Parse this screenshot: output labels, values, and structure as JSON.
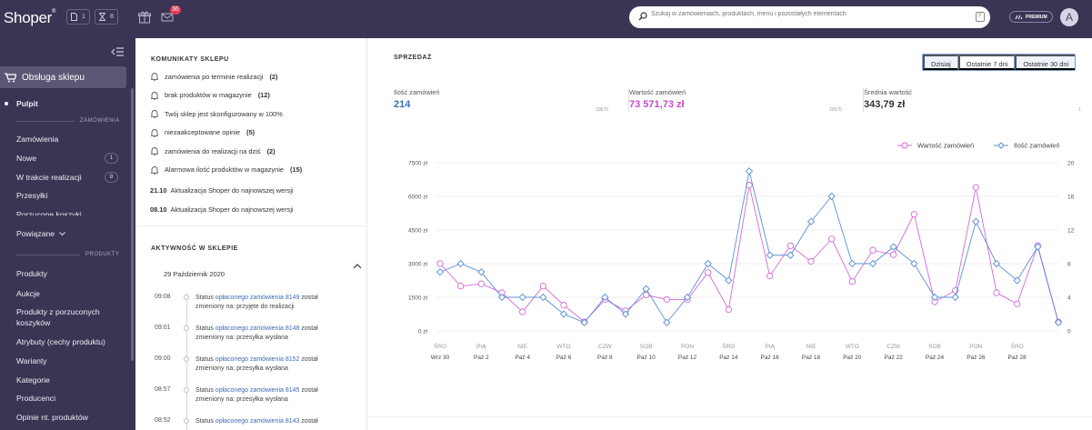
{
  "topbar": {
    "logo": "Shoper",
    "badge1_icon": "document-icon",
    "badge1_count": "1",
    "badge2_icon": "hourglass-icon",
    "badge2_count": "8",
    "mail_count": "36",
    "search_placeholder": "Szukaj w zamówieniach, produktach, menu i pozostałych elementach",
    "search_key": "F",
    "premium_label": "PREMIUM",
    "avatar_letter": "A"
  },
  "sidebar": {
    "store_label": "Obsługa sklepu",
    "pulpit": "Pulpit",
    "section_orders": "ZAMÓWIENIA",
    "orders": "Zamówienia",
    "new": "Nowe",
    "new_count": "1",
    "in_progress": "W trakcie realizacji",
    "in_progress_count": "8",
    "shipments": "Przesyłki",
    "abandoned_carts": "Porzucone koszyki",
    "related": "Powiązane",
    "section_products": "PRODUKTY",
    "products": "Produkty",
    "auctions": "Aukcje",
    "products_abandoned_1": "Produkty z porzuconych",
    "products_abandoned_2": "koszyków",
    "attributes": "Atrybuty (cechy produktu)",
    "variants": "Warianty",
    "categories": "Kategorie",
    "producers": "Producenci",
    "reviews": "Opinie nt. produktów"
  },
  "messages": {
    "title": "KOMUNIKATY SKLEPU",
    "items": [
      {
        "text": "zamówienia po terminie realizacji",
        "count": "(2)"
      },
      {
        "text": "brak produktów w magazynie",
        "count": "(12)"
      },
      {
        "text": "Twój sklep jest skonfigurowany w 100%",
        "count": ""
      },
      {
        "text": "niezaakceptowane opinie",
        "count": "(5)"
      },
      {
        "text": "zamówienia do realizacji na dziś",
        "count": "(2)"
      },
      {
        "text": "Alarmowa ilość produktów w magazynie",
        "count": "(15)"
      }
    ],
    "updates": [
      {
        "date": "21.10",
        "text": "Aktualizacja Shoper do najnowszej wersji"
      },
      {
        "date": "08.10",
        "text": "Aktualizacja Shoper do najnowszej wersji"
      }
    ]
  },
  "activity": {
    "title": "AKTYWNOŚĆ W SKLEPIE",
    "date": "29 Październik 2020",
    "items": [
      {
        "time": "09:08",
        "pre": "Status ",
        "link": "opłaconego zamówienia 8149",
        "post": " został zmieniony na: przyjęte do realizacji"
      },
      {
        "time": "09:01",
        "pre": "Status ",
        "link": "opłaconego zamówienia 8148",
        "post": " został zmieniony na: przesyłka wysłana"
      },
      {
        "time": "09:00",
        "pre": "Status ",
        "link": "opłaconego zamówienia 8152",
        "post": " został zmieniony na: przesyłka wysłana"
      },
      {
        "time": "08:57",
        "pre": "Status ",
        "link": "opłaconego zamówienia 8145",
        "post": " został zmieniony na: przesyłka wysłana"
      },
      {
        "time": "08:52",
        "pre": "Status ",
        "link": "opłaconego zamówienia 8143",
        "post": " został"
      }
    ]
  },
  "sales": {
    "title": "SPRZEDAŻ",
    "ranges": [
      "Dzisiaj",
      "Ostatnie 7 dni",
      "Ostatnie 30 dni"
    ],
    "metrics": [
      {
        "label": "Ilość zamówień",
        "value": "214",
        "prev": "10670",
        "color": "#3d6bb5"
      },
      {
        "label": "Wartość zamówień",
        "value": "73 571,73 zł",
        "prev": "20970",
        "color": "#c54bc9"
      },
      {
        "label": "Średnia wartość",
        "value": "343,79 zł",
        "prev": "1",
        "color": "#333333"
      }
    ]
  },
  "chart_data": {
    "type": "line",
    "legend": [
      "Wartość zamówień",
      "Ilość zamówień"
    ],
    "legend_position": "top-right",
    "colors": {
      "value": "#d26ad6",
      "count": "#5b8fd6"
    },
    "y_left": {
      "ticks": [
        "0 zł",
        "1500 zł",
        "3000 zł",
        "4500 zł",
        "6000 zł",
        "7500 zł"
      ],
      "range": [
        0,
        7500
      ]
    },
    "y_right": {
      "ticks": [
        "0",
        "4",
        "8",
        "12",
        "16",
        "20"
      ],
      "range": [
        0,
        20
      ]
    },
    "x_labels": [
      [
        "ŚRO",
        "Wrz 30"
      ],
      [
        "PIĄ",
        "Paź 2"
      ],
      [
        "NIE",
        "Paź 4"
      ],
      [
        "WTO",
        "Paź 6"
      ],
      [
        "CZW",
        "Paź 8"
      ],
      [
        "SOB",
        "Paź 10"
      ],
      [
        "PON",
        "Paź 12"
      ],
      [
        "ŚRO",
        "Paź 14"
      ],
      [
        "PIĄ",
        "Paź 16"
      ],
      [
        "NIE",
        "Paź 18"
      ],
      [
        "WTO",
        "Paź 20"
      ],
      [
        "CZW",
        "Paź 22"
      ],
      [
        "SOB",
        "Paź 24"
      ],
      [
        "PON",
        "Paź 26"
      ],
      [
        "ŚRO",
        "Paź 28"
      ]
    ],
    "series": [
      {
        "name": "Wartość zamówień",
        "axis": "left",
        "values": [
          3000,
          2000,
          2100,
          1700,
          850,
          2000,
          1150,
          400,
          1400,
          900,
          1600,
          1400,
          1400,
          2600,
          950,
          6500,
          2450,
          3800,
          3100,
          4100,
          2200,
          3600,
          3400,
          5200,
          1300,
          1800,
          6400,
          1700,
          1200,
          3800,
          400
        ]
      },
      {
        "name": "Ilość zamówień",
        "axis": "right",
        "values": [
          7,
          8,
          7,
          4,
          4,
          4,
          2,
          1,
          4,
          2,
          5,
          1,
          4,
          8,
          6,
          19,
          9,
          9,
          13,
          16,
          8,
          8,
          10,
          8,
          4,
          4,
          13,
          8,
          6,
          10,
          1
        ]
      }
    ],
    "grid": "horizontal"
  }
}
